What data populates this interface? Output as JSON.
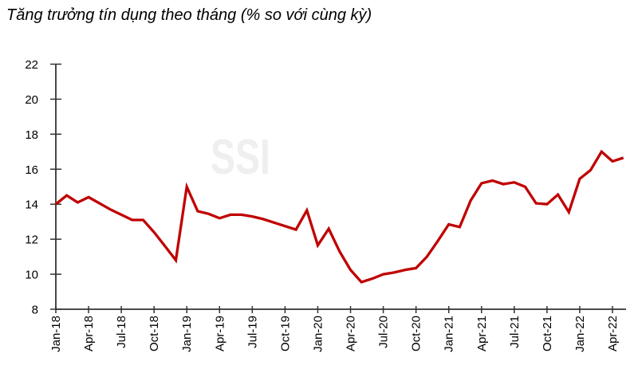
{
  "title": "Tăng trưởng tín dụng theo tháng (% so với cùng kỳ)",
  "watermark": "SSI",
  "colors": {
    "line": "#C00000",
    "axis": "#333333",
    "tick_label": "#000000",
    "watermark": "#EFEFEF",
    "background": "#FFFFFF"
  },
  "chart_data": {
    "type": "line",
    "title": "Tăng trưởng tín dụng theo tháng (% so với cùng kỳ)",
    "x": [
      "Jan-18",
      "Feb-18",
      "Mar-18",
      "Apr-18",
      "May-18",
      "Jun-18",
      "Jul-18",
      "Aug-18",
      "Sep-18",
      "Oct-18",
      "Nov-18",
      "Dec-18",
      "Jan-19",
      "Feb-19",
      "Mar-19",
      "Apr-19",
      "May-19",
      "Jun-19",
      "Jul-19",
      "Aug-19",
      "Sep-19",
      "Oct-19",
      "Nov-19",
      "Dec-19",
      "Jan-20",
      "Feb-20",
      "Mar-20",
      "Apr-20",
      "May-20",
      "Jun-20",
      "Jul-20",
      "Aug-20",
      "Sep-20",
      "Oct-20",
      "Nov-20",
      "Dec-20",
      "Jan-21",
      "Feb-21",
      "Mar-21",
      "Apr-21",
      "May-21",
      "Jun-21",
      "Jul-21",
      "Aug-21",
      "Sep-21",
      "Oct-21",
      "Nov-21",
      "Dec-21",
      "Jan-22",
      "Feb-22",
      "Mar-22",
      "Apr-22",
      "May-22"
    ],
    "values": [
      14.0,
      14.5,
      14.1,
      14.4,
      14.05,
      13.7,
      13.4,
      13.1,
      13.1,
      12.4,
      11.6,
      10.8,
      15.0,
      13.6,
      13.45,
      13.2,
      13.4,
      13.4,
      13.3,
      13.15,
      12.95,
      12.75,
      12.55,
      13.65,
      11.65,
      12.6,
      11.3,
      10.25,
      9.55,
      9.75,
      10.0,
      10.1,
      10.25,
      10.35,
      11.0,
      11.9,
      12.85,
      12.7,
      14.2,
      15.2,
      15.35,
      15.15,
      15.25,
      15.0,
      14.05,
      14.0,
      14.55,
      13.55,
      15.45,
      15.95,
      17.0,
      16.45,
      16.65
    ],
    "x_tick_labels": [
      "Jan-18",
      "Apr-18",
      "Jul-18",
      "Oct-18",
      "Jan-19",
      "Apr-19",
      "Jul-19",
      "Oct-19",
      "Jan-20",
      "Apr-20",
      "Jul-20",
      "Oct-20",
      "Jan-21",
      "Apr-21",
      "Jul-21",
      "Oct-21",
      "Jan-22",
      "Apr-22"
    ],
    "x_tick_every": 3,
    "yticks": [
      8,
      10,
      12,
      14,
      16,
      18,
      20,
      22
    ],
    "ylim": [
      8,
      22
    ],
    "xlabel": "",
    "ylabel": "",
    "grid": false,
    "legend": "none"
  }
}
